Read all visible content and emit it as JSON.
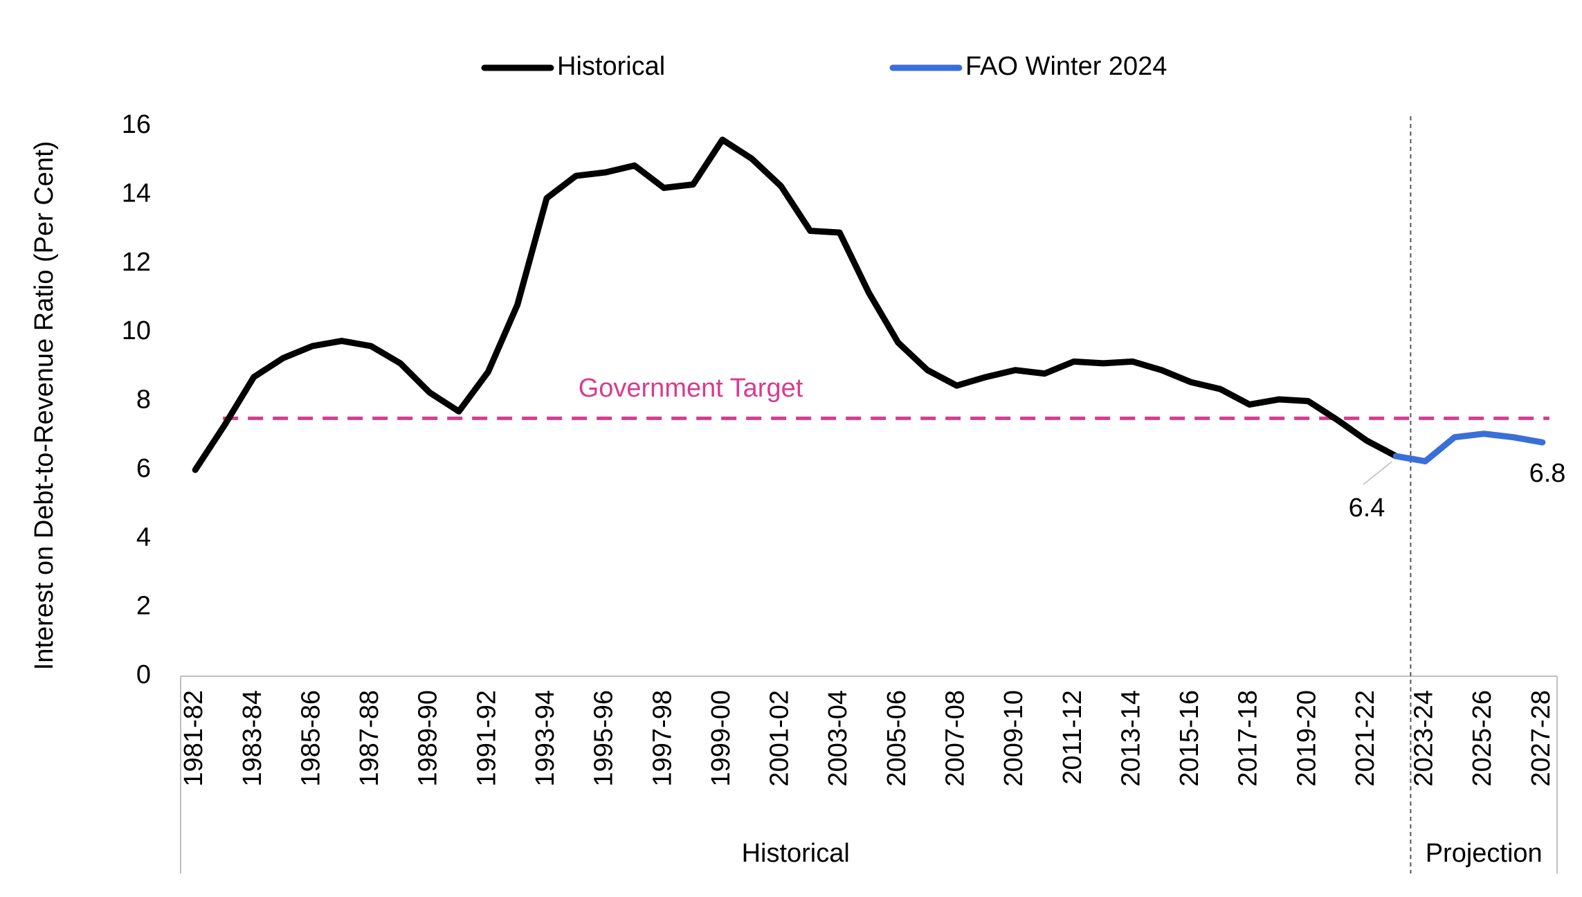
{
  "chart_data": {
    "type": "line",
    "y_label": "Interest on Debt-to-Revenue Ratio (Per Cent)",
    "categories": [
      "1981-82",
      null,
      "1983-84",
      null,
      "1985-86",
      null,
      "1987-88",
      null,
      "1989-90",
      null,
      "1991-92",
      null,
      "1993-94",
      null,
      "1995-96",
      null,
      "1997-98",
      null,
      "1999-00",
      null,
      "2001-02",
      null,
      "2003-04",
      null,
      "2005-06",
      null,
      "2007-08",
      null,
      "2009-10",
      null,
      "2011-12",
      null,
      "2013-14",
      null,
      "2015-16",
      null,
      "2017-18",
      null,
      "2019-20",
      null,
      "2021-22",
      null,
      "2023-24",
      null,
      "2025-26",
      null,
      "2027-28"
    ],
    "series": [
      {
        "name": "Historical",
        "color": "#000000",
        "values": [
          6.0,
          7.3,
          8.7,
          9.25,
          9.6,
          9.75,
          9.6,
          9.1,
          8.25,
          7.7,
          8.85,
          10.8,
          13.9,
          14.55,
          14.65,
          14.85,
          14.2,
          14.3,
          15.6,
          15.05,
          14.25,
          12.95,
          12.9,
          11.15,
          9.7,
          8.9,
          8.45,
          8.7,
          8.9,
          8.8,
          9.15,
          9.1,
          9.15,
          8.9,
          8.55,
          8.35,
          7.9,
          8.05,
          8.0,
          7.45,
          6.85,
          6.4,
          null,
          null,
          null,
          null,
          null
        ]
      },
      {
        "name": "FAO Winter 2024",
        "color": "#3a6fd8",
        "values": [
          null,
          null,
          null,
          null,
          null,
          null,
          null,
          null,
          null,
          null,
          null,
          null,
          null,
          null,
          null,
          null,
          null,
          null,
          null,
          null,
          null,
          null,
          null,
          null,
          null,
          null,
          null,
          null,
          null,
          null,
          null,
          null,
          null,
          null,
          null,
          null,
          null,
          null,
          null,
          null,
          null,
          6.4,
          6.25,
          6.95,
          7.05,
          6.95,
          6.8
        ]
      }
    ],
    "target": {
      "label": "Government Target",
      "value": 7.5,
      "color": "#d63d8e"
    },
    "x_groups": [
      "Historical",
      "Projection"
    ],
    "ylim": [
      0,
      16
    ],
    "yticks": [
      0,
      2,
      4,
      6,
      8,
      10,
      12,
      14,
      16
    ],
    "grid": false,
    "legend": "top"
  }
}
